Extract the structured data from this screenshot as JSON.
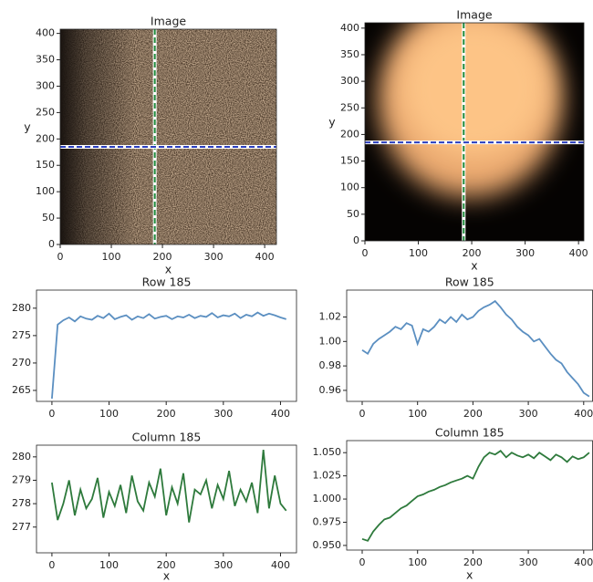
{
  "chart_data": [
    {
      "type": "image",
      "title": "Image",
      "x_label": "x",
      "y_label": "y",
      "xlim": [
        0,
        423
      ],
      "ylim": [
        0,
        408
      ],
      "xticks": [
        0,
        100,
        200,
        300,
        400
      ],
      "yticks": [
        0,
        50,
        100,
        150,
        200,
        250,
        300,
        350,
        400
      ],
      "crosshair_x": 185,
      "crosshair_y": 185,
      "crosshair_x_color": "#1f8a3a",
      "crosshair_y_color": "#2b3fbf",
      "colormap": "copper-noise"
    },
    {
      "type": "image",
      "title": "Image",
      "x_label": "x",
      "y_label": "y",
      "xlim": [
        0,
        410
      ],
      "ylim": [
        0,
        410
      ],
      "xticks": [
        0,
        100,
        200,
        300,
        400
      ],
      "yticks": [
        0,
        50,
        100,
        150,
        200,
        250,
        300,
        350,
        400
      ],
      "crosshair_x": 185,
      "crosshair_y": 185,
      "crosshair_x_color": "#1f8a3a",
      "crosshair_y_color": "#2b3fbf",
      "colormap": "copper-blob"
    },
    {
      "type": "line",
      "title": "Row 185",
      "color": "#5b8fc1",
      "xlim": [
        -27,
        428
      ],
      "ylim": [
        263,
        283.3
      ],
      "xticks": [
        0,
        100,
        200,
        300,
        400
      ],
      "yticks": [
        265,
        270,
        275,
        280
      ],
      "x": [
        0,
        10,
        20,
        30,
        40,
        50,
        60,
        70,
        80,
        90,
        100,
        110,
        120,
        130,
        140,
        150,
        160,
        170,
        180,
        190,
        200,
        210,
        220,
        230,
        240,
        250,
        260,
        270,
        280,
        290,
        300,
        310,
        320,
        330,
        340,
        350,
        360,
        370,
        380,
        390,
        400,
        410
      ],
      "values": [
        263.5,
        277.0,
        277.8,
        278.3,
        277.6,
        278.5,
        278.1,
        277.9,
        278.6,
        278.2,
        279.0,
        278.0,
        278.4,
        278.7,
        277.9,
        278.5,
        278.2,
        278.9,
        278.1,
        278.4,
        278.6,
        278.0,
        278.5,
        278.3,
        278.8,
        278.2,
        278.6,
        278.4,
        279.1,
        278.3,
        278.7,
        278.5,
        279.0,
        278.2,
        278.8,
        278.5,
        279.2,
        278.6,
        279.0,
        278.7,
        278.3,
        278.0
      ]
    },
    {
      "type": "line",
      "title": "Row 185",
      "color": "#5b8fc1",
      "xlim": [
        -28,
        416
      ],
      "ylim": [
        0.951,
        1.042
      ],
      "xticks": [
        0,
        100,
        200,
        300,
        400
      ],
      "yticks": [
        0.96,
        0.98,
        {
          "value": 1,
          "label": "1.00"
        },
        1.02
      ],
      "x": [
        0,
        10,
        20,
        30,
        40,
        50,
        60,
        70,
        80,
        90,
        100,
        110,
        120,
        130,
        140,
        150,
        160,
        170,
        180,
        190,
        200,
        210,
        220,
        230,
        240,
        250,
        260,
        270,
        280,
        290,
        300,
        310,
        320,
        330,
        340,
        350,
        360,
        370,
        380,
        390,
        400,
        410
      ],
      "values": [
        0.993,
        0.99,
        0.998,
        1.002,
        1.005,
        1.008,
        1.012,
        1.01,
        1.015,
        1.013,
        0.998,
        1.01,
        1.008,
        1.012,
        1.018,
        1.015,
        1.02,
        1.016,
        1.022,
        1.018,
        1.02,
        1.025,
        1.028,
        1.03,
        1.033,
        1.028,
        1.022,
        1.018,
        1.012,
        1.008,
        1.005,
        1.0,
        1.002,
        0.996,
        0.99,
        0.985,
        0.982,
        0.975,
        0.97,
        0.965,
        0.958,
        0.955
      ]
    },
    {
      "type": "line",
      "title": "Column 185",
      "x_label": "x",
      "color": "#2e7a3c",
      "xlim": [
        -27,
        428
      ],
      "ylim": [
        275.9,
        280.5
      ],
      "xticks": [
        0,
        100,
        200,
        300,
        400
      ],
      "yticks": [
        277,
        278,
        279,
        280
      ],
      "x": [
        0,
        10,
        20,
        30,
        40,
        50,
        60,
        70,
        80,
        90,
        100,
        110,
        120,
        130,
        140,
        150,
        160,
        170,
        180,
        190,
        200,
        210,
        220,
        230,
        240,
        250,
        260,
        270,
        280,
        290,
        300,
        310,
        320,
        330,
        340,
        350,
        360,
        370,
        380,
        390,
        400,
        410
      ],
      "values": [
        278.9,
        277.3,
        278.0,
        279.0,
        277.5,
        278.6,
        277.8,
        278.2,
        279.1,
        277.4,
        278.5,
        277.9,
        278.8,
        277.6,
        279.2,
        278.1,
        277.7,
        278.9,
        278.3,
        279.5,
        277.5,
        278.7,
        278.0,
        279.3,
        277.2,
        278.6,
        278.4,
        279.0,
        277.8,
        278.8,
        278.2,
        279.4,
        277.9,
        278.6,
        278.1,
        278.9,
        277.6,
        280.3,
        277.8,
        279.2,
        278.0,
        277.7
      ]
    },
    {
      "type": "line",
      "title": "Column 185",
      "x_label": "x",
      "color": "#2e7a3c",
      "xlim": [
        -28,
        416
      ],
      "ylim": [
        0.945,
        1.063
      ],
      "xticks": [
        0,
        100,
        200,
        300,
        400
      ],
      "yticks": [
        {
          "value": 0.95,
          "label": "0.950"
        },
        0.975,
        {
          "value": 1,
          "label": "1.000"
        },
        1.025,
        {
          "value": 1.05,
          "label": "1.050"
        }
      ],
      "x": [
        0,
        10,
        20,
        30,
        40,
        50,
        60,
        70,
        80,
        90,
        100,
        110,
        120,
        130,
        140,
        150,
        160,
        170,
        180,
        190,
        200,
        210,
        220,
        230,
        240,
        250,
        260,
        270,
        280,
        290,
        300,
        310,
        320,
        330,
        340,
        350,
        360,
        370,
        380,
        390,
        400,
        410
      ],
      "values": [
        0.957,
        0.955,
        0.965,
        0.972,
        0.978,
        0.98,
        0.985,
        0.99,
        0.993,
        0.998,
        1.003,
        1.005,
        1.008,
        1.01,
        1.013,
        1.015,
        1.018,
        1.02,
        1.022,
        1.025,
        1.022,
        1.035,
        1.045,
        1.05,
        1.048,
        1.052,
        1.045,
        1.05,
        1.047,
        1.045,
        1.048,
        1.044,
        1.05,
        1.046,
        1.042,
        1.048,
        1.045,
        1.04,
        1.046,
        1.043,
        1.045,
        1.05
      ]
    }
  ]
}
